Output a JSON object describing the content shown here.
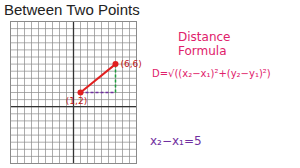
{
  "chart_data": {
    "type": "line",
    "title": "Between Two Points",
    "x": [
      1,
      6
    ],
    "values": [
      2,
      6
    ],
    "point_labels": [
      "(1,2)",
      "(6,6)"
    ],
    "color": "#e02020",
    "marker": "circle",
    "xlim": [
      -9,
      9
    ],
    "ylim": [
      -8,
      12
    ],
    "xticks": [
      -9,
      -8,
      -7,
      -6,
      -5,
      -4,
      -3,
      -2,
      -1,
      0,
      1,
      2,
      3,
      4,
      5,
      6,
      7,
      8,
      9
    ],
    "yticks": [
      -8,
      -7,
      -6,
      -5,
      -4,
      -3,
      -2,
      -1,
      0,
      1,
      2,
      3,
      4,
      5,
      6,
      7,
      8,
      9,
      10,
      11,
      12
    ],
    "grid": true,
    "tick_labels": false,
    "annotations": [
      {
        "text": "Distance Formula",
        "color": "#e0206a"
      },
      {
        "text": "D=√((x₂−x₁)²+(y₂−y₁)²)",
        "color": "#e0206a"
      },
      {
        "text": "x₂−x₁=5",
        "color": "#7030a0"
      }
    ]
  }
}
